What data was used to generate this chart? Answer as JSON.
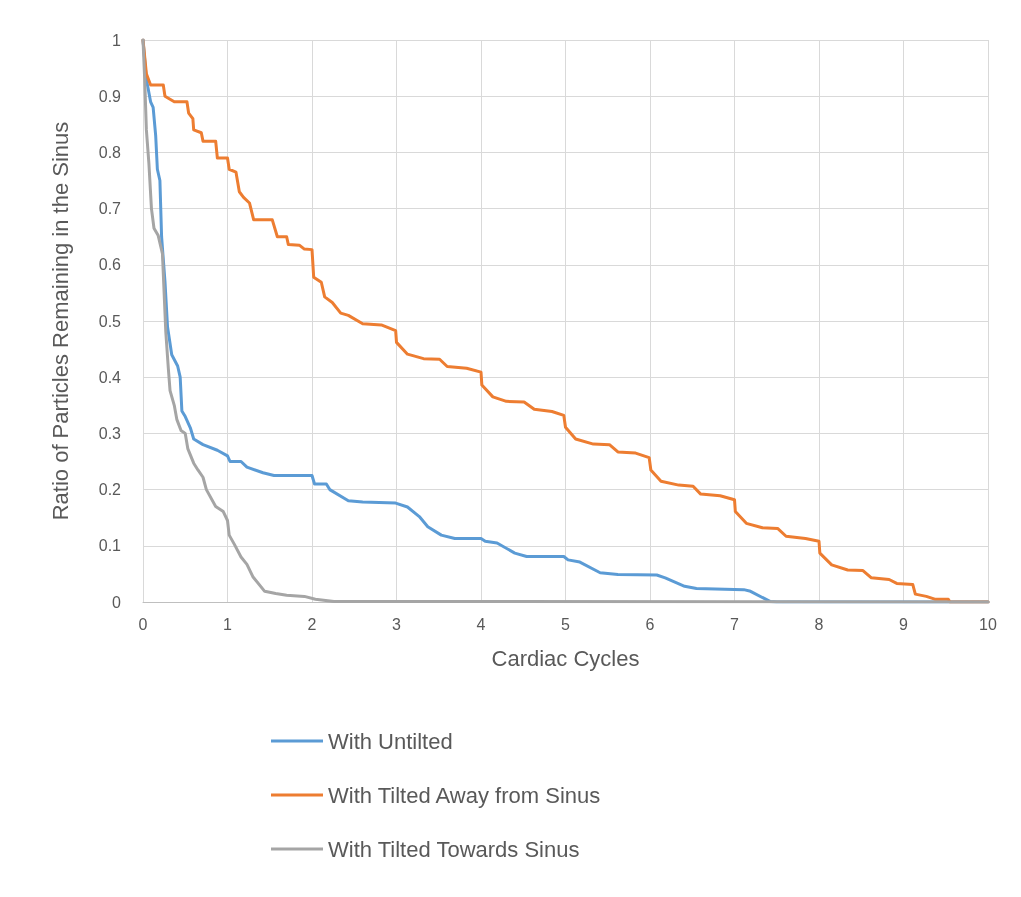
{
  "chart_data": {
    "type": "line",
    "xlabel": "Cardiac Cycles",
    "ylabel": "Ratio of Particles Remaining in the Sinus",
    "xlim": [
      0,
      10
    ],
    "xticks": [
      0,
      1,
      2,
      3,
      4,
      5,
      6,
      7,
      8,
      9,
      10
    ],
    "ylim": [
      0,
      1
    ],
    "yticks": [
      0,
      0.1,
      0.2,
      0.3,
      0.4,
      0.5,
      0.6,
      0.7,
      0.8,
      0.9,
      1
    ],
    "grid": true,
    "legend": "bottom",
    "marker": "none",
    "line_style": "solid",
    "series": [
      {
        "name": "With Untilted",
        "color": "#5b9bd5",
        "x": [
          0,
          0.04,
          0.09,
          0.12,
          0.15,
          0.17,
          0.2,
          0.22,
          0.26,
          0.29,
          0.32,
          0.34,
          0.41,
          0.44,
          0.46,
          0.5,
          0.56,
          0.6,
          0.71,
          0.88,
          1.0,
          1.03,
          1.16,
          1.23,
          1.42,
          1.55,
          2.0,
          2.03,
          2.17,
          2.21,
          2.43,
          2.6,
          2.99,
          3.13,
          3.27,
          3.37,
          3.53,
          3.69,
          4.0,
          4.05,
          4.19,
          4.4,
          4.54,
          4.98,
          5.03,
          5.17,
          5.41,
          5.62,
          6.08,
          6.18,
          6.41,
          6.55,
          7.11,
          7.19,
          7.42,
          7.5,
          10
        ],
        "values": [
          1,
          0.93,
          0.89,
          0.88,
          0.83,
          0.77,
          0.75,
          0.65,
          0.57,
          0.49,
          0.46,
          0.44,
          0.42,
          0.4,
          0.34,
          0.33,
          0.31,
          0.29,
          0.28,
          0.27,
          0.26,
          0.25,
          0.25,
          0.24,
          0.23,
          0.225,
          0.225,
          0.21,
          0.21,
          0.2,
          0.18,
          0.178,
          0.176,
          0.169,
          0.152,
          0.134,
          0.119,
          0.113,
          0.113,
          0.108,
          0.105,
          0.087,
          0.081,
          0.081,
          0.075,
          0.071,
          0.052,
          0.049,
          0.048,
          0.043,
          0.028,
          0.024,
          0.022,
          0.019,
          0.001,
          0,
          0
        ]
      },
      {
        "name": "With Tilted Away from Sinus",
        "color": "#ed7d31",
        "x": [
          0,
          0.04,
          0.09,
          0.24,
          0.26,
          0.37,
          0.52,
          0.54,
          0.59,
          0.6,
          0.69,
          0.71,
          0.86,
          0.88,
          1.0,
          1.02,
          1.1,
          1.14,
          1.19,
          1.26,
          1.31,
          1.53,
          1.59,
          1.7,
          1.72,
          1.85,
          1.91,
          2.0,
          2.02,
          2.11,
          2.15,
          2.24,
          2.34,
          2.43,
          2.6,
          2.82,
          2.99,
          3.0,
          3.13,
          3.32,
          3.51,
          3.6,
          3.83,
          4.0,
          4.01,
          4.14,
          4.3,
          4.51,
          4.63,
          4.84,
          4.98,
          5.0,
          5.12,
          5.33,
          5.52,
          5.62,
          5.83,
          5.99,
          6.01,
          6.13,
          6.34,
          6.51,
          6.6,
          6.83,
          7.0,
          7.01,
          7.14,
          7.33,
          7.51,
          7.61,
          7.84,
          8.0,
          8.01,
          8.15,
          8.34,
          8.52,
          8.62,
          8.83,
          8.92,
          9.11,
          9.14,
          9.27,
          9.37,
          9.53,
          9.55,
          10
        ],
        "values": [
          1,
          0.94,
          0.92,
          0.92,
          0.9,
          0.89,
          0.89,
          0.87,
          0.86,
          0.84,
          0.835,
          0.82,
          0.82,
          0.79,
          0.79,
          0.77,
          0.765,
          0.73,
          0.72,
          0.71,
          0.68,
          0.68,
          0.65,
          0.65,
          0.636,
          0.635,
          0.628,
          0.627,
          0.578,
          0.569,
          0.543,
          0.533,
          0.514,
          0.51,
          0.495,
          0.493,
          0.483,
          0.462,
          0.441,
          0.433,
          0.432,
          0.419,
          0.416,
          0.409,
          0.386,
          0.365,
          0.357,
          0.356,
          0.343,
          0.339,
          0.332,
          0.311,
          0.29,
          0.281,
          0.28,
          0.267,
          0.265,
          0.257,
          0.235,
          0.215,
          0.208,
          0.206,
          0.192,
          0.189,
          0.182,
          0.161,
          0.14,
          0.132,
          0.131,
          0.117,
          0.113,
          0.108,
          0.087,
          0.066,
          0.057,
          0.056,
          0.043,
          0.04,
          0.033,
          0.031,
          0.014,
          0.01,
          0.005,
          0.005,
          0,
          0
        ]
      },
      {
        "name": "With Tilted Towards Sinus",
        "color": "#a5a5a5",
        "x": [
          0,
          0.02,
          0.04,
          0.07,
          0.1,
          0.13,
          0.18,
          0.23,
          0.27,
          0.3,
          0.32,
          0.37,
          0.4,
          0.45,
          0.5,
          0.53,
          0.6,
          0.65,
          0.71,
          0.75,
          0.86,
          0.95,
          1.0,
          1.02,
          1.08,
          1.16,
          1.23,
          1.3,
          1.44,
          1.57,
          1.7,
          1.91,
          2.04,
          2.26,
          10
        ],
        "values": [
          1,
          0.93,
          0.84,
          0.78,
          0.7,
          0.665,
          0.652,
          0.62,
          0.48,
          0.415,
          0.376,
          0.35,
          0.325,
          0.305,
          0.3,
          0.273,
          0.247,
          0.235,
          0.222,
          0.2,
          0.17,
          0.161,
          0.145,
          0.119,
          0.103,
          0.08,
          0.067,
          0.045,
          0.019,
          0.015,
          0.012,
          0.01,
          0.005,
          0.001,
          0
        ]
      }
    ]
  }
}
